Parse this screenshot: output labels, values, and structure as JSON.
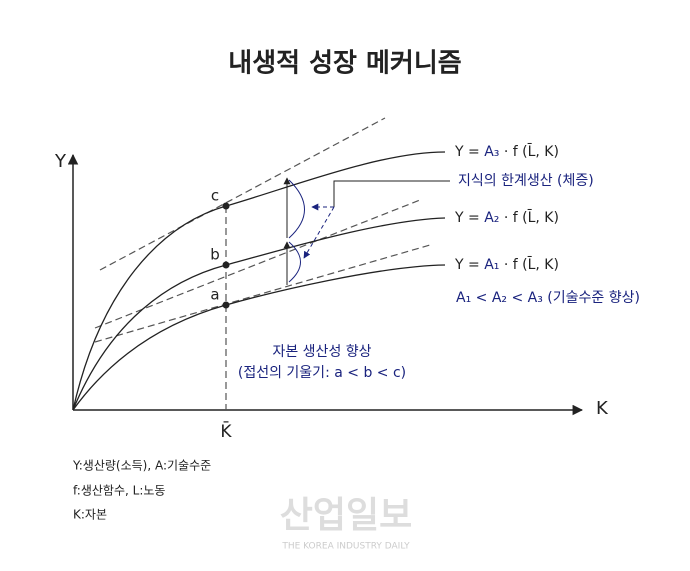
{
  "title": "내생적 성장 메커니즘",
  "axes": {
    "y": "Y",
    "x": "K",
    "k_bar": "K̄"
  },
  "points": [
    "c",
    "b",
    "a"
  ],
  "curves": [
    {
      "lhs": "Y =",
      "a": "A₃",
      "rhs": "· f (L̄, K)"
    },
    {
      "lhs": "Y =",
      "a": "A₂",
      "rhs": "· f (L̄, K)"
    },
    {
      "lhs": "Y =",
      "a": "A₁",
      "rhs": "· f (L̄, K)"
    }
  ],
  "annotations": {
    "knowledge": "지식의 한계생산 (체증)",
    "tech": "A₁ < A₂ < A₃ (기술수준 향상)",
    "capital_1": "자본 생산성 향상",
    "capital_2": "(접선의 기울기: a < b < c)"
  },
  "notes": [
    "Y:생산량(소득), A:기술수준",
    "f:생산함수, L:노동",
    "K:자본"
  ],
  "watermark": {
    "name": "산업일보",
    "sub": "THE KOREA INDUSTRY DAILY"
  }
}
